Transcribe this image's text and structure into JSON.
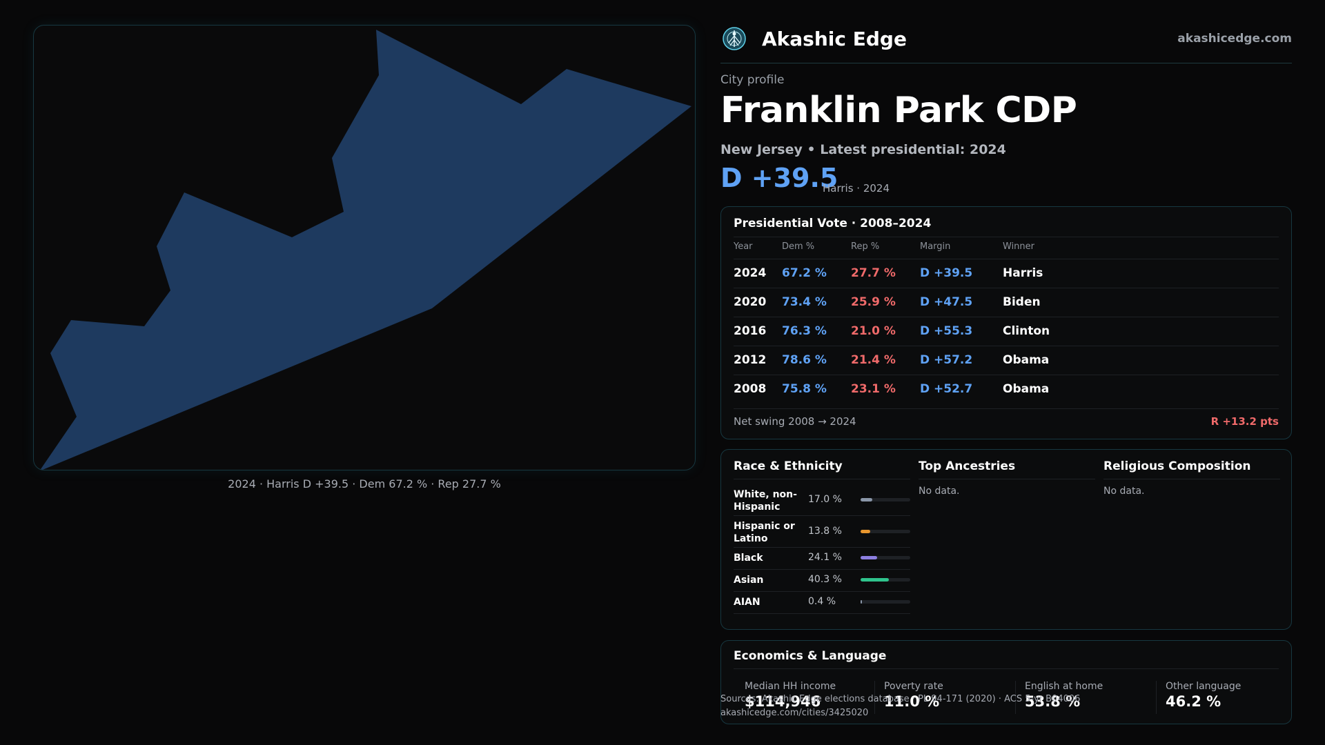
{
  "brand": {
    "name": "Akashic Edge",
    "url": "akashicedge.com",
    "logo_icon": "tree-of-life-icon",
    "accent": "#5fa2f5"
  },
  "profile": {
    "eyebrow": "City profile",
    "city": "Franklin Park CDP",
    "subline": "New Jersey • Latest presidential: 2024",
    "margin": "D +39.5",
    "margin_note": "Harris · 2024"
  },
  "map": {
    "caption": "2024 · Harris D +39.5 · Dem 67.2 % · Rep 27.7 %",
    "fill_color": "#1e3a5f"
  },
  "vote": {
    "title": "Presidential Vote · 2008–2024",
    "headers": {
      "year": "Year",
      "dem": "Dem %",
      "rep": "Rep %",
      "margin": "Margin",
      "winner": "Winner"
    },
    "rows": [
      {
        "year": "2024",
        "dem": "67.2 %",
        "rep": "27.7 %",
        "margin": "D +39.5",
        "winner": "Harris"
      },
      {
        "year": "2020",
        "dem": "73.4 %",
        "rep": "25.9 %",
        "margin": "D +47.5",
        "winner": "Biden"
      },
      {
        "year": "2016",
        "dem": "76.3 %",
        "rep": "21.0 %",
        "margin": "D +55.3",
        "winner": "Clinton"
      },
      {
        "year": "2012",
        "dem": "78.6 %",
        "rep": "21.4 %",
        "margin": "D +57.2",
        "winner": "Obama"
      },
      {
        "year": "2008",
        "dem": "75.8 %",
        "rep": "23.1 %",
        "margin": "D +52.7",
        "winner": "Obama"
      }
    ],
    "swing_label": "Net swing 2008 → 2024",
    "swing_value": "R +13.2 pts",
    "dem_color": "#5fa2f5",
    "rep_color": "#f06a6a"
  },
  "demographics": {
    "race_title": "Race & Ethnicity",
    "race": [
      {
        "label": "White, non-Hispanic",
        "pct": "17.0 %",
        "value": 17.0,
        "color": "#8a96a8"
      },
      {
        "label": "Hispanic or Latino",
        "pct": "13.8 %",
        "value": 13.8,
        "color": "#e8962e"
      },
      {
        "label": "Black",
        "pct": "24.1 %",
        "value": 24.1,
        "color": "#8c7ee0"
      },
      {
        "label": "Asian",
        "pct": "40.3 %",
        "value": 40.3,
        "color": "#2fc48d"
      },
      {
        "label": "AIAN",
        "pct": "0.4 %",
        "value": 0.4,
        "color": "#8a96a8"
      }
    ],
    "ancestry_title": "Top Ancestries",
    "ancestry_empty": "No data.",
    "religion_title": "Religious Composition",
    "religion_empty": "No data."
  },
  "economics": {
    "title": "Economics & Language",
    "cells": [
      {
        "label": "Median HH income",
        "value": "$114,946"
      },
      {
        "label": "Poverty rate",
        "value": "11.0 %"
      },
      {
        "label": "English at home",
        "value": "53.8 %"
      },
      {
        "label": "Other language",
        "value": "46.2 %"
      }
    ]
  },
  "footer": {
    "source": "Sources: Akashic Edge elections database · PL 94-171 (2020) · ACS 5-yr B04006",
    "link": "akashicedge.com/cities/3425020"
  }
}
